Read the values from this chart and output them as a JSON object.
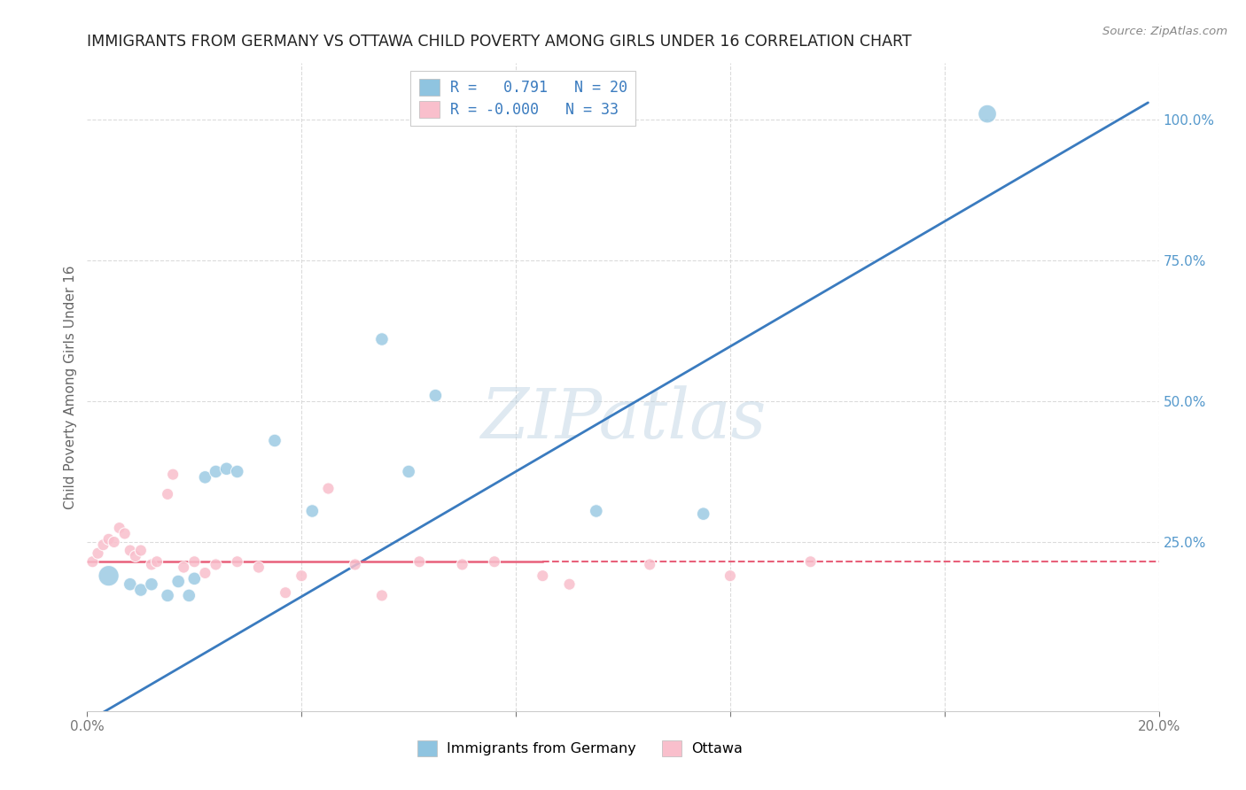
{
  "title": "IMMIGRANTS FROM GERMANY VS OTTAWA CHILD POVERTY AMONG GIRLS UNDER 16 CORRELATION CHART",
  "source": "Source: ZipAtlas.com",
  "ylabel": "Child Poverty Among Girls Under 16",
  "xlim": [
    0.0,
    0.2
  ],
  "ylim": [
    -0.05,
    1.1
  ],
  "x_ticks": [
    0.0,
    0.04,
    0.08,
    0.12,
    0.16,
    0.2
  ],
  "x_tick_labels": [
    "0.0%",
    "",
    "",
    "",
    "",
    "20.0%"
  ],
  "y_ticks_right": [
    0.25,
    0.5,
    0.75,
    1.0
  ],
  "y_tick_labels_right": [
    "25.0%",
    "50.0%",
    "75.0%",
    "100.0%"
  ],
  "legend_r1": "R =   0.791   N = 20",
  "legend_r2": "R = -0.000   N = 33",
  "blue_color": "#8fc4e0",
  "pink_color": "#f9bfcc",
  "blue_line_color": "#3a7bbf",
  "pink_line_color": "#e8607a",
  "grid_color": "#d8d8d8",
  "title_color": "#222222",
  "right_axis_color": "#5599cc",
  "watermark": "ZIPatlas",
  "blue_scatter_x": [
    0.004,
    0.008,
    0.01,
    0.012,
    0.015,
    0.017,
    0.019,
    0.02,
    0.022,
    0.024,
    0.026,
    0.028,
    0.035,
    0.042,
    0.055,
    0.06,
    0.065,
    0.095,
    0.115,
    0.168
  ],
  "blue_scatter_y": [
    0.19,
    0.175,
    0.165,
    0.175,
    0.155,
    0.18,
    0.155,
    0.185,
    0.365,
    0.375,
    0.38,
    0.375,
    0.43,
    0.305,
    0.61,
    0.375,
    0.51,
    0.305,
    0.3,
    1.01
  ],
  "pink_scatter_x": [
    0.001,
    0.002,
    0.003,
    0.004,
    0.005,
    0.006,
    0.007,
    0.008,
    0.009,
    0.01,
    0.012,
    0.013,
    0.015,
    0.016,
    0.018,
    0.02,
    0.022,
    0.024,
    0.028,
    0.032,
    0.037,
    0.04,
    0.045,
    0.05,
    0.055,
    0.062,
    0.07,
    0.076,
    0.085,
    0.09,
    0.105,
    0.12,
    0.135
  ],
  "pink_scatter_y": [
    0.215,
    0.23,
    0.245,
    0.255,
    0.25,
    0.275,
    0.265,
    0.235,
    0.225,
    0.235,
    0.21,
    0.215,
    0.335,
    0.37,
    0.205,
    0.215,
    0.195,
    0.21,
    0.215,
    0.205,
    0.16,
    0.19,
    0.345,
    0.21,
    0.155,
    0.215,
    0.21,
    0.215,
    0.19,
    0.175,
    0.21,
    0.19,
    0.215
  ],
  "blue_line_x": [
    -0.002,
    0.198
  ],
  "blue_line_y": [
    -0.08,
    1.03
  ],
  "pink_line_y": 0.215,
  "blue_dot_size": 110,
  "pink_dot_size": 90,
  "large_blue_dot_indices": [
    0,
    5
  ],
  "large_blue_dot_size": 280
}
